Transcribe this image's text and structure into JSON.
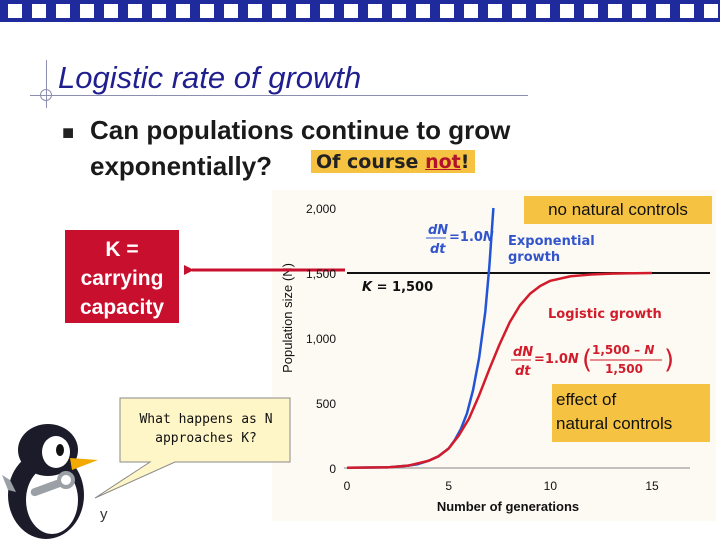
{
  "slide": {
    "title": "Logistic rate of growth",
    "bullet_line1": "Can populations continue to grow",
    "bullet_line2": "exponentially?",
    "highlight_text": "Of course ",
    "highlight_emph": "not",
    "highlight_punct": "!",
    "footer_fragment": "y"
  },
  "callouts": {
    "no_natural_controls": "no natural controls",
    "effect_of_natural_controls": "effect of\nnatural controls",
    "k_carrying_capacity": "K =\ncarrying\ncapacity",
    "speech_bubble": "What happens as N approaches K?"
  },
  "colors": {
    "title": "#1f1f8f",
    "highlight": "#f5c242",
    "k_box": "#c8102e",
    "exponential": "#2255d6",
    "logistic": "#d21c2b",
    "arrow": "#c8102e"
  },
  "chart_data": {
    "type": "line",
    "xlabel": "Number of generations",
    "ylabel": "Population size (N)",
    "xlim": [
      0,
      16
    ],
    "ylim": [
      0,
      2000
    ],
    "xticks": [
      "0",
      "5",
      "10",
      "15"
    ],
    "yticks": [
      "0",
      "500",
      "1,000",
      "1,500",
      "2,000"
    ],
    "grid": false,
    "series": [
      {
        "name": "Exponential growth",
        "equation": "dN/dt = 1.0N",
        "x": [
          0,
          2,
          3,
          3.5,
          4,
          4.5,
          5,
          5.3,
          5.6,
          5.9,
          6.2,
          6.5,
          6.8,
          7.0,
          7.2
        ],
        "y": [
          2,
          5,
          18,
          30,
          55,
          90,
          150,
          215,
          300,
          420,
          600,
          850,
          1200,
          1550,
          2000
        ]
      },
      {
        "name": "Logistic growth",
        "equation": "dN/dt = 1.0N ((1,500 − N)/1,500)",
        "x": [
          0,
          2,
          3,
          4,
          4.5,
          5,
          5.5,
          6,
          6.5,
          7,
          7.5,
          8,
          8.5,
          9,
          9.5,
          10,
          11,
          12,
          13,
          14,
          15
        ],
        "y": [
          2,
          5,
          18,
          55,
          90,
          150,
          250,
          380,
          560,
          760,
          950,
          1120,
          1250,
          1340,
          1400,
          1440,
          1475,
          1488,
          1495,
          1498,
          1500
        ]
      }
    ],
    "hlines": [
      {
        "label": "K = 1,500",
        "y": 1500
      }
    ]
  }
}
